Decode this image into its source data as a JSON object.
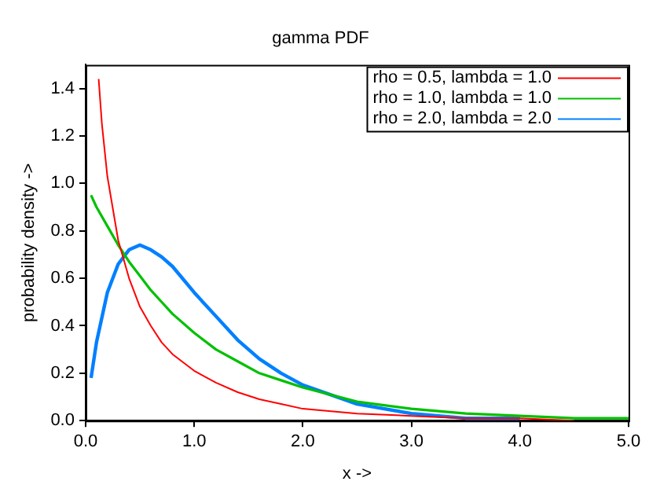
{
  "chart_data": {
    "type": "line",
    "title": "gamma PDF",
    "xlabel": "x ->",
    "ylabel": "probability density ->",
    "xlim": [
      0,
      5
    ],
    "ylim": [
      0,
      1.5
    ],
    "xticks": [
      {
        "value": 0,
        "label": "0.0"
      },
      {
        "value": 1,
        "label": "1.0"
      },
      {
        "value": 2,
        "label": "2.0"
      },
      {
        "value": 3,
        "label": "3.0"
      },
      {
        "value": 4,
        "label": "4.0"
      },
      {
        "value": 5,
        "label": "5.0"
      }
    ],
    "yticks": [
      {
        "value": 0,
        "label": "0.0"
      },
      {
        "value": 0.2,
        "label": "0.2"
      },
      {
        "value": 0.4,
        "label": "0.4"
      },
      {
        "value": 0.6,
        "label": "0.6"
      },
      {
        "value": 0.8,
        "label": "0.8"
      },
      {
        "value": 1,
        "label": "1.0"
      },
      {
        "value": 1.2,
        "label": "1.2"
      },
      {
        "value": 1.4,
        "label": "1.4"
      }
    ],
    "grid": false,
    "legend": "top right",
    "marker": "none",
    "line_style": "solid",
    "series": [
      {
        "name": "rho = 0.5, lambda = 1.0",
        "color": "#ff0000",
        "x": [
          0.12,
          0.15,
          0.2,
          0.3,
          0.4,
          0.5,
          0.6,
          0.7,
          0.8,
          1.0,
          1.2,
          1.4,
          1.6,
          1.8,
          2.0,
          2.5,
          3.0,
          3.5,
          4.0,
          4.5
        ],
        "values": [
          1.44,
          1.25,
          1.03,
          0.76,
          0.6,
          0.48,
          0.4,
          0.33,
          0.28,
          0.21,
          0.16,
          0.12,
          0.09,
          0.07,
          0.05,
          0.03,
          0.02,
          0.01,
          0.01,
          0
        ]
      },
      {
        "name": "rho = 1.0, lambda = 1.0",
        "color": "#00c000",
        "x": [
          0.05,
          0.1,
          0.2,
          0.3,
          0.4,
          0.5,
          0.6,
          0.7,
          0.8,
          1.0,
          1.2,
          1.4,
          1.6,
          1.8,
          2.0,
          2.5,
          3.0,
          3.5,
          4.0,
          4.5,
          5.0
        ],
        "values": [
          0.95,
          0.9,
          0.82,
          0.74,
          0.67,
          0.61,
          0.55,
          0.5,
          0.45,
          0.37,
          0.3,
          0.25,
          0.2,
          0.17,
          0.14,
          0.08,
          0.05,
          0.03,
          0.02,
          0.01,
          0.01
        ]
      },
      {
        "name": "rho = 2.0, lambda = 2.0",
        "color": "#0080ff",
        "x": [
          0.05,
          0.1,
          0.2,
          0.3,
          0.4,
          0.5,
          0.6,
          0.7,
          0.8,
          1.0,
          1.2,
          1.4,
          1.6,
          1.8,
          2.0,
          2.5,
          3.0,
          3.5,
          4.0
        ],
        "values": [
          0.18,
          0.33,
          0.54,
          0.66,
          0.72,
          0.74,
          0.72,
          0.69,
          0.65,
          0.54,
          0.44,
          0.34,
          0.26,
          0.2,
          0.15,
          0.07,
          0.03,
          0.01,
          0.01
        ]
      }
    ]
  }
}
